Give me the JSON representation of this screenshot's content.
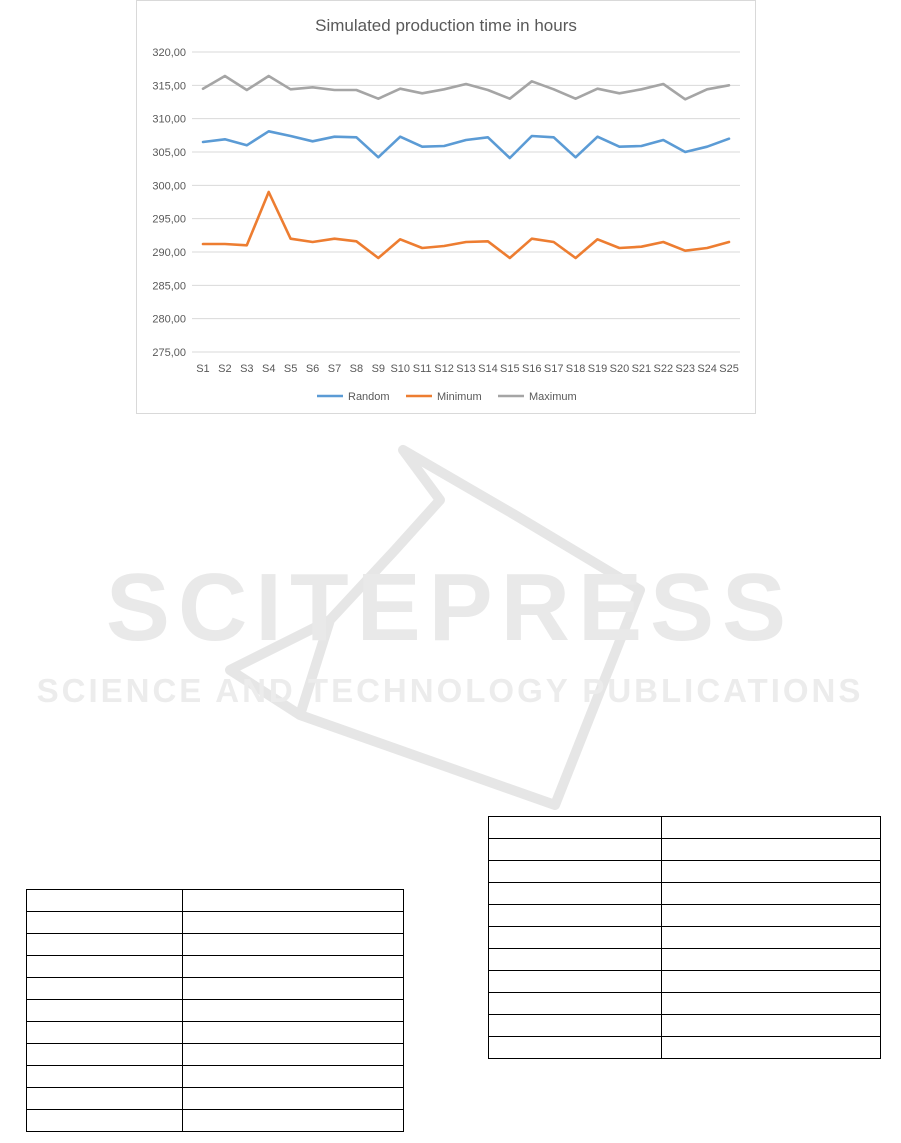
{
  "chart_data": {
    "type": "line",
    "title": "Simulated production time in hours",
    "categories": [
      "S1",
      "S2",
      "S3",
      "S4",
      "S5",
      "S6",
      "S7",
      "S8",
      "S9",
      "S10",
      "S11",
      "S12",
      "S13",
      "S14",
      "S15",
      "S16",
      "S17",
      "S18",
      "S19",
      "S20",
      "S21",
      "S22",
      "S23",
      "S24",
      "S25"
    ],
    "ylim": [
      275,
      320
    ],
    "yticks": [
      275,
      280,
      285,
      290,
      295,
      300,
      305,
      310,
      315,
      320
    ],
    "ytick_labels": [
      "275,00",
      "280,00",
      "285,00",
      "290,00",
      "295,00",
      "300,00",
      "305,00",
      "310,00",
      "315,00",
      "320,00"
    ],
    "grid": true,
    "legend_position": "bottom",
    "series": [
      {
        "name": "Random",
        "color": "#5b9bd5",
        "values": [
          306.5,
          306.9,
          306.0,
          308.1,
          307.4,
          306.6,
          307.3,
          307.2,
          304.2,
          307.3,
          305.8,
          305.9,
          306.8,
          307.2,
          304.1,
          307.4,
          307.2,
          304.2,
          307.3,
          305.8,
          305.9,
          306.8,
          305.0,
          305.8,
          307.0
        ]
      },
      {
        "name": "Minimum",
        "color": "#ed7d31",
        "values": [
          291.2,
          291.2,
          291.0,
          299.0,
          292.0,
          291.5,
          292.0,
          291.6,
          289.1,
          291.9,
          290.6,
          290.9,
          291.5,
          291.6,
          289.1,
          292.0,
          291.5,
          289.1,
          291.9,
          290.6,
          290.8,
          291.5,
          290.2,
          290.6,
          291.5
        ]
      },
      {
        "name": "Maximum",
        "color": "#a5a5a5",
        "values": [
          314.5,
          316.4,
          314.3,
          316.4,
          314.4,
          314.7,
          314.3,
          314.3,
          313.0,
          314.5,
          313.8,
          314.4,
          315.2,
          314.3,
          313.0,
          315.6,
          314.4,
          313.0,
          314.5,
          313.8,
          314.4,
          315.2,
          312.9,
          314.4,
          315.0
        ]
      }
    ]
  },
  "tables": {
    "left_rows": 11,
    "right_rows": 11
  }
}
